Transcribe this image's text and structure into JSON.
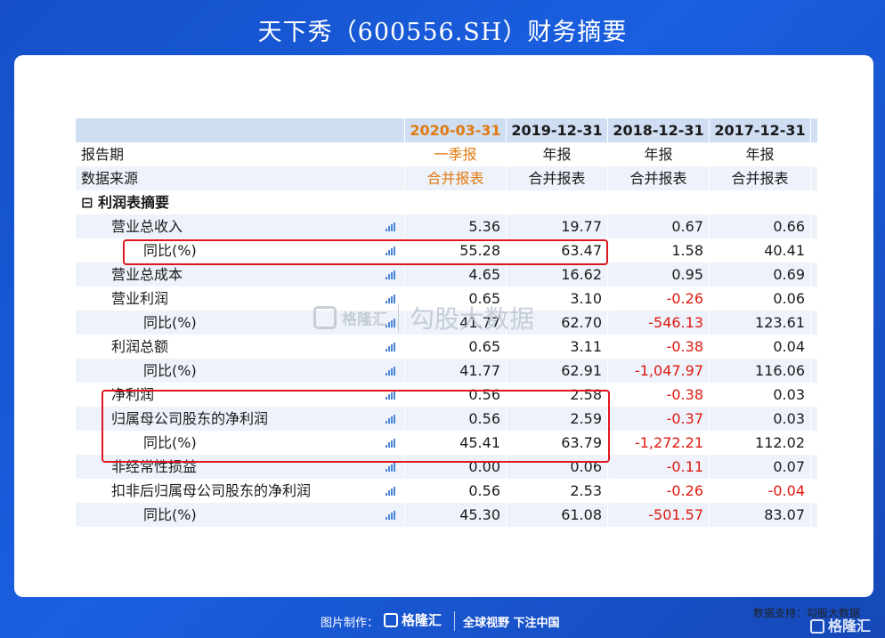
{
  "title": "天下秀（600556.SH）财务摘要",
  "header": {
    "label": "",
    "dates": [
      "2020-03-31",
      "2019-12-31",
      "2018-12-31",
      "2017-12-31"
    ]
  },
  "rows": [
    {
      "label": "报告期",
      "values": [
        "一季报",
        "年报",
        "年报",
        "年报"
      ]
    },
    {
      "label": "数据来源",
      "values": [
        "合并报表",
        "合并报表",
        "合并报表",
        "合并报表"
      ]
    },
    {
      "label": "⊟ 利润表摘要",
      "values": [
        "",
        "",
        "",
        ""
      ]
    },
    {
      "label": "营业总收入",
      "values": [
        "5.36",
        "19.77",
        "0.67",
        "0.66"
      ]
    },
    {
      "label": "同比(%)",
      "values": [
        "55.28",
        "63.47",
        "1.58",
        "40.41"
      ]
    },
    {
      "label": "营业总成本",
      "values": [
        "4.65",
        "16.62",
        "0.95",
        "0.69"
      ]
    },
    {
      "label": "营业利润",
      "values": [
        "0.65",
        "3.10",
        "-0.26",
        "0.06"
      ]
    },
    {
      "label": "同比(%)",
      "values": [
        "41.77",
        "62.70",
        "-546.13",
        "123.61"
      ]
    },
    {
      "label": "利润总额",
      "values": [
        "0.65",
        "3.11",
        "-0.38",
        "0.04"
      ]
    },
    {
      "label": "同比(%)",
      "values": [
        "41.77",
        "62.91",
        "-1,047.97",
        "116.06"
      ]
    },
    {
      "label": "净利润",
      "values": [
        "0.56",
        "2.58",
        "-0.38",
        "0.03"
      ]
    },
    {
      "label": "归属母公司股东的净利润",
      "values": [
        "0.56",
        "2.59",
        "-0.37",
        "0.03"
      ]
    },
    {
      "label": "同比(%)",
      "values": [
        "45.41",
        "63.79",
        "-1,272.21",
        "112.02"
      ]
    },
    {
      "label": "非经常性损益",
      "values": [
        "0.00",
        "0.06",
        "-0.11",
        "0.07"
      ]
    },
    {
      "label": "扣非后归属母公司股东的净利润",
      "values": [
        "0.56",
        "2.53",
        "-0.26",
        "-0.04"
      ]
    },
    {
      "label": "同比(%)",
      "values": [
        "45.30",
        "61.08",
        "-501.57",
        "83.07"
      ]
    }
  ],
  "watermark": {
    "brand": "格隆汇",
    "text": "勾股大数据"
  },
  "support_text": "数据支持：勾股大数据",
  "footer": {
    "made_by": "图片制作：",
    "logo": "格隆汇",
    "slogan": "全球视野 下注中国"
  },
  "corner_logo": "格隆汇",
  "colors": {
    "background": "#1a5fe0",
    "header_row": "#cfdef3",
    "alt_row": "#eef3fb",
    "highlight_date": "#e07a10",
    "negative": "#e0180f",
    "box": "#e0151f",
    "icon": "#4a86d6"
  },
  "icons": {
    "row_icon": "bar-chart-icon"
  }
}
